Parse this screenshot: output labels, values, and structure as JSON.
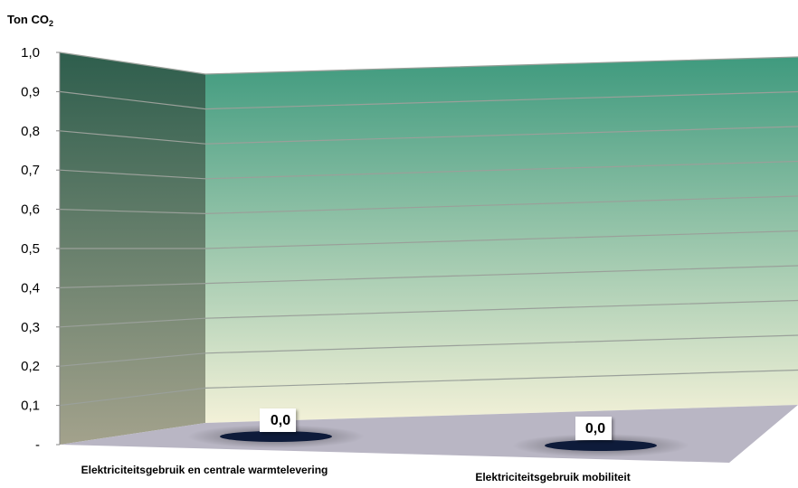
{
  "chart_data": {
    "type": "bar",
    "title": "",
    "ylabel_prefix": "Ton CO",
    "ylabel_sub": "2",
    "categories": [
      "Elektriciteitsgebruik en centrale warmtelevering",
      "Elektriciteitsgebruik mobiliteit"
    ],
    "values": [
      0.0,
      0.0
    ],
    "data_labels": [
      "0,0",
      "0,0"
    ],
    "ylim": [
      0,
      1.0
    ],
    "yticks": [
      {
        "value": 0.0,
        "label": "-"
      },
      {
        "value": 0.1,
        "label": "0,1"
      },
      {
        "value": 0.2,
        "label": "0,2"
      },
      {
        "value": 0.3,
        "label": "0,3"
      },
      {
        "value": 0.4,
        "label": "0,4"
      },
      {
        "value": 0.5,
        "label": "0,5"
      },
      {
        "value": 0.6,
        "label": "0,6"
      },
      {
        "value": 0.7,
        "label": "0,7"
      },
      {
        "value": 0.8,
        "label": "0,8"
      },
      {
        "value": 0.9,
        "label": "0,9"
      },
      {
        "value": 1.0,
        "label": "1,0"
      }
    ],
    "grid": true,
    "legend": "none",
    "colors": {
      "back_wall_top": "#3f9a7e",
      "back_wall_bottom": "#f3f1d8",
      "side_wall_top": "#2e5e4d",
      "side_wall_bottom": "#a3a28c",
      "floor": "#b9b6c4",
      "bar": "#0e1b3a",
      "gridline": "#9aa09a"
    }
  }
}
